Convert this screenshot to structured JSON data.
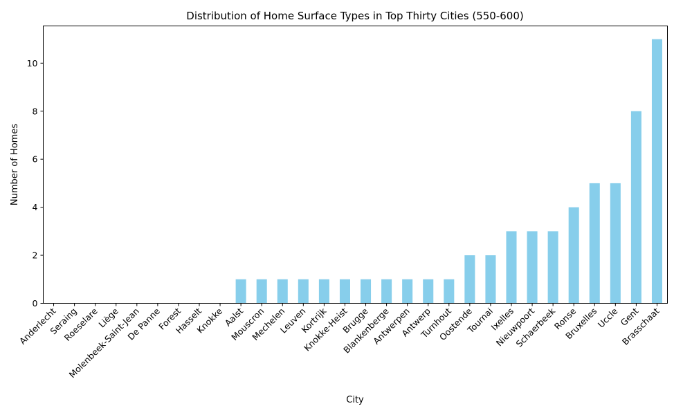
{
  "chart_data": {
    "type": "bar",
    "title": "Distribution of Home Surface Types in Top Thirty Cities (550-600)",
    "xlabel": "City",
    "ylabel": "Number of Homes",
    "categories": [
      "Anderlecht",
      "Seraing",
      "Roeselare",
      "Liège",
      "Molenbeek-Saint-Jean",
      "De Panne",
      "Forest",
      "Hasselt",
      "Knokke",
      "Aalst",
      "Mouscron",
      "Mechelen",
      "Leuven",
      "Kortrijk",
      "Knokke-Heist",
      "Brugge",
      "Blankenberge",
      "Antwerpen",
      "Antwerp",
      "Turnhout",
      "Oostende",
      "Tournai",
      "Ixelles",
      "Nieuwpoort",
      "Schaerbeek",
      "Ronse",
      "Bruxelles",
      "Uccle",
      "Gent",
      "Brasschaat"
    ],
    "values": [
      0,
      0,
      0,
      0,
      0,
      0,
      0,
      0,
      0,
      1,
      1,
      1,
      1,
      1,
      1,
      1,
      1,
      1,
      1,
      1,
      2,
      2,
      3,
      3,
      3,
      4,
      5,
      5,
      8,
      11
    ],
    "ylim": [
      0,
      11.55
    ],
    "yticks": [
      0,
      2,
      4,
      6,
      8,
      10
    ],
    "bar_color": "#87ceeb",
    "grid": false,
    "legend": "none"
  }
}
